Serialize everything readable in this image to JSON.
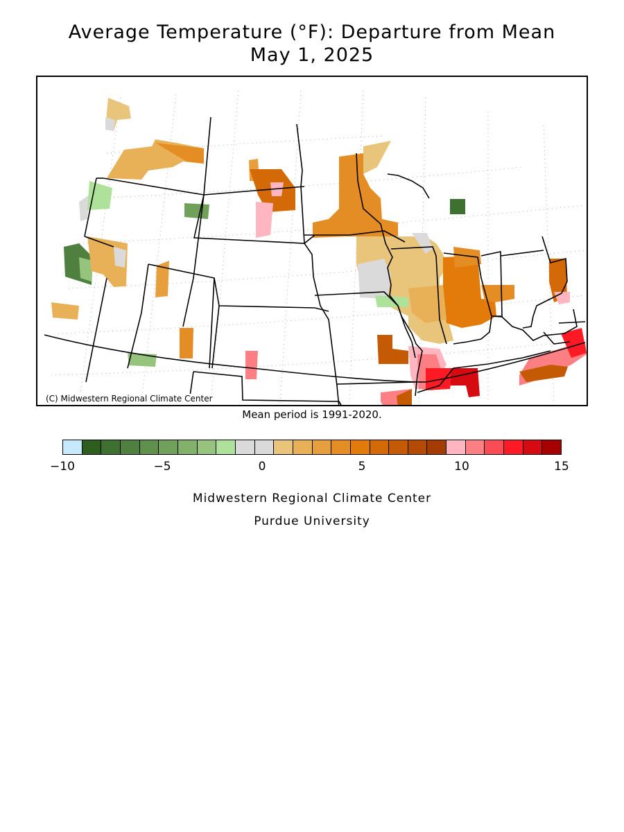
{
  "title_line1": "Average Temperature (°F): Departure from Mean",
  "title_line2": "May 1, 2025",
  "copyright": "(C) Midwestern Regional Climate Center",
  "mean_period": "Mean period is 1991-2020.",
  "legend": {
    "min": -10,
    "max": 15,
    "tick_labels": [
      "−10",
      "−5",
      "0",
      "5",
      "10",
      "15"
    ],
    "colors": [
      "#c6e9fb",
      "#2e5e1e",
      "#3e7030",
      "#4f803f",
      "#5f904c",
      "#70a05a",
      "#82b26a",
      "#96c47c",
      "#aee29a",
      "#dadada",
      "#dadada",
      "#e8c57a",
      "#e8b158",
      "#e79f3e",
      "#e58d25",
      "#e37b0b",
      "#d46a07",
      "#c55a05",
      "#b44a03",
      "#a43c01",
      "#ffb6c1",
      "#fc7f84",
      "#fa4c55",
      "#fe1a24",
      "#d60b11",
      "#a60003"
    ]
  },
  "credit_line1": "Midwestern Regional Climate Center",
  "credit_line2": "Purdue University"
}
